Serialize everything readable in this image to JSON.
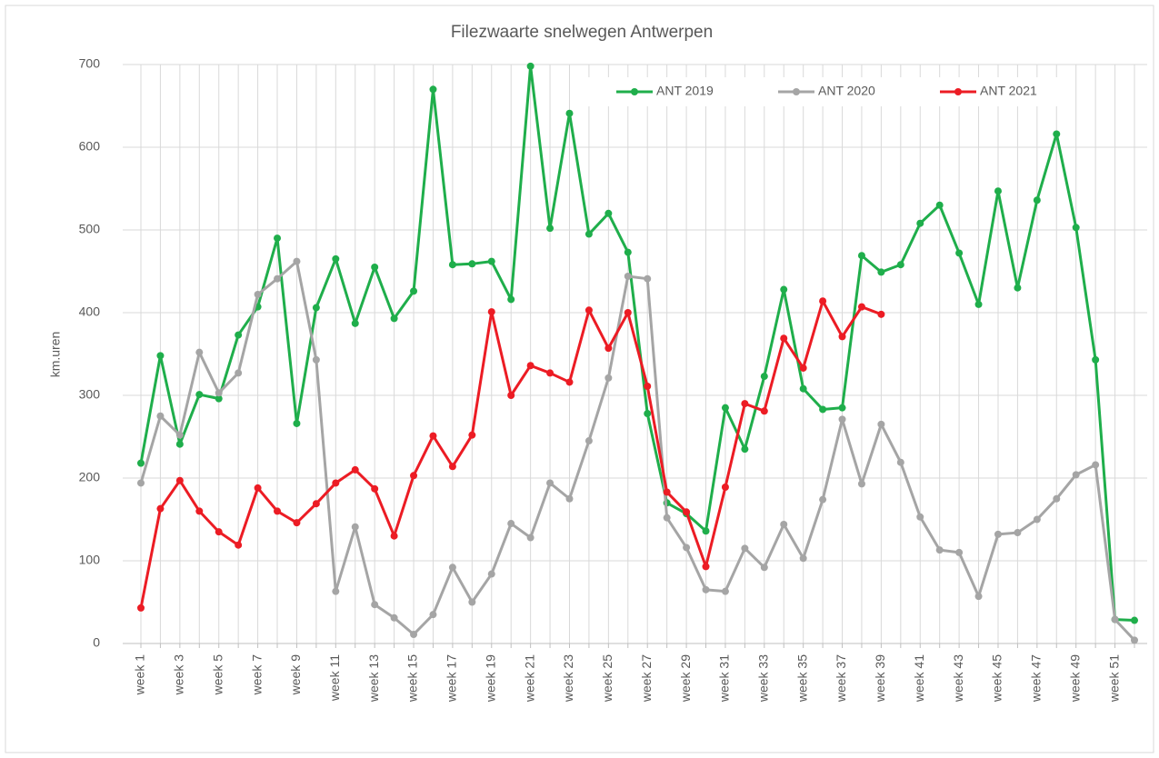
{
  "chart_data": {
    "type": "line",
    "title": "Filezwaarte snelwegen Antwerpen",
    "y_label": "km.uren",
    "categories": [
      "week 1",
      null,
      "week 3",
      null,
      "week 5",
      null,
      "week 7",
      null,
      "week 9",
      null,
      "week 11",
      null,
      "week 13",
      null,
      "week 15",
      null,
      "week 17",
      null,
      "week 19",
      null,
      "week 21",
      null,
      "week 23",
      null,
      "week 25",
      null,
      "week 27",
      null,
      "week 29",
      null,
      "week 31",
      null,
      "week 33",
      null,
      "week 35",
      null,
      "week 37",
      null,
      "week 39",
      null,
      "week 41",
      null,
      "week 43",
      null,
      "week 45",
      null,
      "week 47",
      null,
      "week 49",
      null,
      "week 51",
      null
    ],
    "series": [
      {
        "name": "ANT 2019",
        "color": "#1fae4b",
        "values": [
          218,
          348,
          241,
          301,
          296,
          373,
          407,
          490,
          266,
          406,
          465,
          387,
          455,
          393,
          426,
          670,
          458,
          459,
          462,
          416,
          698,
          502,
          641,
          495,
          520,
          473,
          278,
          170,
          157,
          136,
          285,
          235,
          323,
          428,
          308,
          283,
          285,
          469,
          449,
          458,
          508,
          530,
          472,
          410,
          547,
          430,
          536,
          616,
          503,
          343,
          29,
          28
        ]
      },
      {
        "name": "ANT 2020",
        "color": "#a5a5a5",
        "values": [
          194,
          275,
          252,
          352,
          303,
          327,
          422,
          441,
          462,
          343,
          63,
          141,
          47,
          31,
          11,
          35,
          92,
          50,
          84,
          145,
          128,
          194,
          175,
          245,
          321,
          444,
          441,
          152,
          116,
          65,
          63,
          115,
          92,
          144,
          103,
          174,
          271,
          193,
          265,
          219,
          153,
          113,
          110,
          57,
          132,
          134,
          150,
          175,
          204,
          216,
          29,
          4
        ]
      },
      {
        "name": "ANT 2021",
        "color": "#ec1c24",
        "values": [
          43,
          163,
          197,
          160,
          135,
          119,
          188,
          160,
          146,
          169,
          194,
          210,
          187,
          130,
          203,
          251,
          214,
          252,
          401,
          300,
          336,
          327,
          316,
          403,
          357,
          400,
          311,
          183,
          159,
          93,
          189,
          290,
          281,
          369,
          333,
          414,
          371,
          407,
          398,
          null,
          null,
          null,
          null,
          null,
          null,
          null,
          null,
          null,
          null,
          null,
          null,
          null
        ]
      }
    ],
    "ylim": [
      0,
      700
    ],
    "yticks": [
      0,
      100,
      200,
      300,
      400,
      500,
      600,
      700
    ],
    "grid": true,
    "legend": "top-right"
  }
}
